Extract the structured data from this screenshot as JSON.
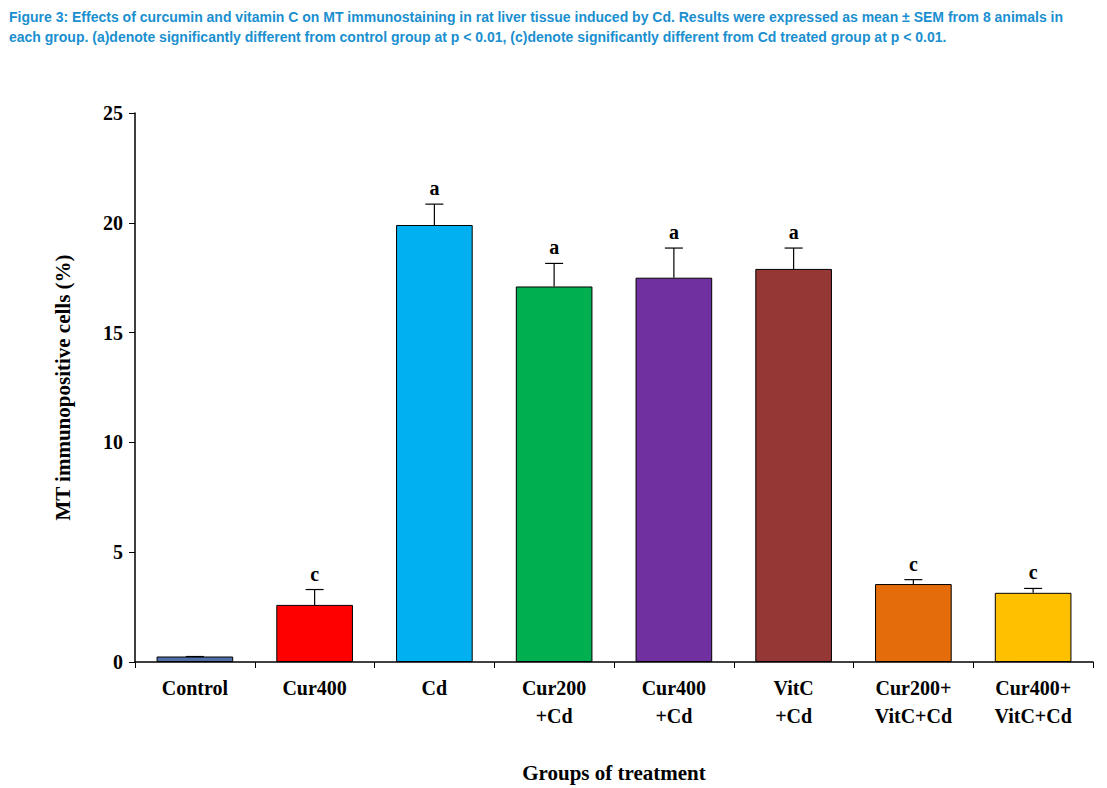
{
  "chart_data": {
    "type": "bar",
    "title": "Figure 3: Effects of curcumin and vitamin C on MT immunostaining in rat liver tissue induced by Cd. Results were expressed as mean ± SEM from 8 animals in each group. (a)denote significantly different from control group at p < 0.01, (c)denote significantly different from Cd treated group at p < 0.01.",
    "x_label": "Groups of treatment",
    "y_label": "MT immunopositive cells (%)",
    "categories": [
      "Control",
      "Cur400",
      "Cd",
      "Cur200\n+Cd",
      "Cur400\n+Cd",
      "VitC\n+Cd",
      "Cur200+\nVitC+Cd",
      "Cur400+\nVitC+Cd"
    ],
    "values": [
      0.25,
      2.6,
      19.9,
      17.1,
      17.5,
      17.9,
      3.55,
      3.15
    ],
    "error_bars": [
      0.0,
      0.7,
      0.95,
      1.05,
      1.35,
      0.95,
      0.2,
      0.2
    ],
    "annotations": [
      null,
      "c",
      "a",
      "a",
      "a",
      "a",
      "c",
      "c"
    ],
    "colors": [
      "#4f6fa8",
      "#ff0000",
      "#00b0f0",
      "#00b050",
      "#7030a0",
      "#953735",
      "#e46c0a",
      "#ffc000"
    ],
    "ylim": [
      0,
      25
    ],
    "yticks": [
      0,
      5,
      10,
      15,
      20,
      25
    ],
    "grid": false
  }
}
